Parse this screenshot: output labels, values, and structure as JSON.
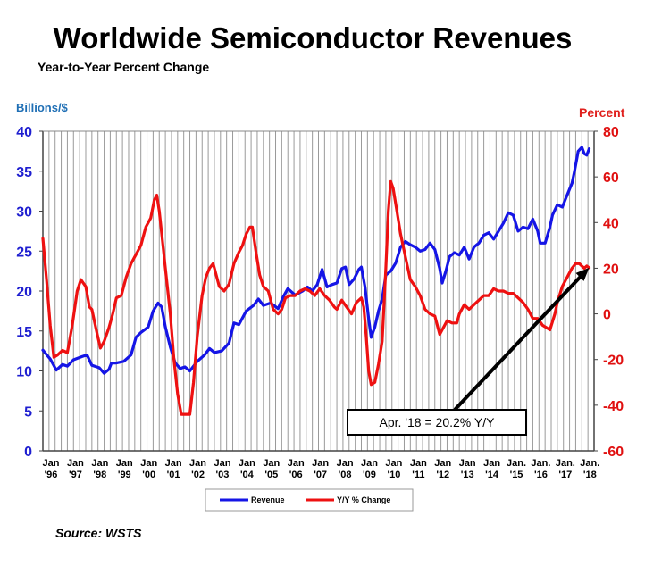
{
  "title": "Worldwide Semiconductor Revenues",
  "subtitle": "Year-to-Year Percent Change",
  "source": "Source: WSTS",
  "colors": {
    "revenue": "#1515e6",
    "yoy": "#ee1111",
    "left_axis": "#1f1fd0",
    "right_axis": "#e01010",
    "grid": "#9a9a9a"
  },
  "chart_data": {
    "type": "line",
    "ylabel_left": "Billions/$",
    "ylabel_right": "Percent",
    "ylim_left": [
      0,
      40
    ],
    "ylim_right": [
      -60,
      80
    ],
    "yticks_left": [
      "0",
      "5",
      "10",
      "15",
      "20",
      "25",
      "30",
      "35",
      "40"
    ],
    "yticks_right": [
      "-60",
      "-40",
      "-20",
      "0",
      "20",
      "40",
      "60",
      "80"
    ],
    "xlim": [
      1996.0,
      2018.5
    ],
    "xticks": [
      {
        "x": 1996,
        "top": "Jan",
        "bottom": "'96"
      },
      {
        "x": 1997,
        "top": "Jan",
        "bottom": "'97"
      },
      {
        "x": 1998,
        "top": "Jan",
        "bottom": "'98"
      },
      {
        "x": 1999,
        "top": "Jan",
        "bottom": "'99"
      },
      {
        "x": 2000,
        "top": "Jan",
        "bottom": "'00"
      },
      {
        "x": 2001,
        "top": "Jan",
        "bottom": "'01"
      },
      {
        "x": 2002,
        "top": "Jan",
        "bottom": "'02"
      },
      {
        "x": 2003,
        "top": "Jan",
        "bottom": "'03"
      },
      {
        "x": 2004,
        "top": "Jan",
        "bottom": "'04"
      },
      {
        "x": 2005,
        "top": "Jan",
        "bottom": "'05"
      },
      {
        "x": 2006,
        "top": "Jan",
        "bottom": "'06"
      },
      {
        "x": 2007,
        "top": "Jan",
        "bottom": "'07"
      },
      {
        "x": 2008,
        "top": "Jan",
        "bottom": "'08"
      },
      {
        "x": 2009,
        "top": "Jan",
        "bottom": "'09"
      },
      {
        "x": 2010,
        "top": "Jan",
        "bottom": "'10"
      },
      {
        "x": 2011,
        "top": "Jan",
        "bottom": "'11"
      },
      {
        "x": 2012,
        "top": "Jan",
        "bottom": "'12"
      },
      {
        "x": 2013,
        "top": "Jan",
        "bottom": "'13"
      },
      {
        "x": 2014,
        "top": "Jan",
        "bottom": "'14"
      },
      {
        "x": 2015,
        "top": "Jan.",
        "bottom": "'15"
      },
      {
        "x": 2016,
        "top": "Jan.",
        "bottom": "'16"
      },
      {
        "x": 2017,
        "top": "Jan.",
        "bottom": "'17"
      },
      {
        "x": 2018,
        "top": "Jan.",
        "bottom": "'18"
      }
    ],
    "grid": "vertical",
    "legend_position": "bottom-center",
    "series": [
      {
        "name": "Revenue",
        "axis": "left",
        "points": [
          [
            1996.0,
            12.6
          ],
          [
            1996.3,
            11.5
          ],
          [
            1996.55,
            10.1
          ],
          [
            1996.8,
            10.8
          ],
          [
            1997.0,
            10.6
          ],
          [
            1997.25,
            11.4
          ],
          [
            1997.6,
            11.8
          ],
          [
            1997.8,
            12.0
          ],
          [
            1998.0,
            10.7
          ],
          [
            1998.3,
            10.4
          ],
          [
            1998.5,
            9.7
          ],
          [
            1998.7,
            10.2
          ],
          [
            1998.8,
            11.0
          ],
          [
            1999.0,
            11.0
          ],
          [
            1999.3,
            11.2
          ],
          [
            1999.6,
            12.0
          ],
          [
            1999.8,
            14.2
          ],
          [
            2000.0,
            14.8
          ],
          [
            2000.3,
            15.5
          ],
          [
            2000.5,
            17.5
          ],
          [
            2000.7,
            18.5
          ],
          [
            2000.85,
            18.0
          ],
          [
            2001.0,
            15.5
          ],
          [
            2001.2,
            13.0
          ],
          [
            2001.4,
            11.0
          ],
          [
            2001.6,
            10.3
          ],
          [
            2001.8,
            10.5
          ],
          [
            2002.0,
            10.0
          ],
          [
            2002.3,
            11.2
          ],
          [
            2002.6,
            12.0
          ],
          [
            2002.8,
            12.8
          ],
          [
            2003.0,
            12.3
          ],
          [
            2003.3,
            12.5
          ],
          [
            2003.6,
            13.5
          ],
          [
            2003.8,
            16.0
          ],
          [
            2004.0,
            15.8
          ],
          [
            2004.3,
            17.5
          ],
          [
            2004.6,
            18.2
          ],
          [
            2004.8,
            19.0
          ],
          [
            2005.0,
            18.2
          ],
          [
            2005.3,
            18.5
          ],
          [
            2005.6,
            17.8
          ],
          [
            2005.8,
            19.2
          ],
          [
            2006.0,
            20.3
          ],
          [
            2006.3,
            19.5
          ],
          [
            2006.6,
            20.0
          ],
          [
            2006.8,
            20.5
          ],
          [
            2007.0,
            20.0
          ],
          [
            2007.2,
            20.8
          ],
          [
            2007.4,
            22.7
          ],
          [
            2007.6,
            20.5
          ],
          [
            2007.8,
            20.8
          ],
          [
            2008.0,
            21.0
          ],
          [
            2008.2,
            22.8
          ],
          [
            2008.35,
            23.0
          ],
          [
            2008.5,
            20.8
          ],
          [
            2008.7,
            21.5
          ],
          [
            2008.9,
            22.7
          ],
          [
            2009.0,
            23.0
          ],
          [
            2009.15,
            20.5
          ],
          [
            2009.3,
            16.5
          ],
          [
            2009.4,
            14.2
          ],
          [
            2009.55,
            15.5
          ],
          [
            2009.7,
            17.5
          ],
          [
            2009.85,
            19.0
          ],
          [
            2010.0,
            22.0
          ],
          [
            2010.2,
            22.5
          ],
          [
            2010.4,
            23.5
          ],
          [
            2010.6,
            25.5
          ],
          [
            2010.8,
            26.2
          ],
          [
            2011.0,
            25.8
          ],
          [
            2011.2,
            25.5
          ],
          [
            2011.4,
            25.0
          ],
          [
            2011.6,
            25.2
          ],
          [
            2011.8,
            26.0
          ],
          [
            2012.0,
            25.2
          ],
          [
            2012.2,
            22.8
          ],
          [
            2012.3,
            21.0
          ],
          [
            2012.45,
            22.5
          ],
          [
            2012.6,
            24.3
          ],
          [
            2012.8,
            24.8
          ],
          [
            2013.0,
            24.5
          ],
          [
            2013.2,
            25.5
          ],
          [
            2013.4,
            24.0
          ],
          [
            2013.6,
            25.5
          ],
          [
            2013.8,
            26.0
          ],
          [
            2014.0,
            27.0
          ],
          [
            2014.2,
            27.3
          ],
          [
            2014.4,
            26.5
          ],
          [
            2014.6,
            27.5
          ],
          [
            2014.8,
            28.5
          ],
          [
            2015.0,
            29.8
          ],
          [
            2015.2,
            29.5
          ],
          [
            2015.4,
            27.5
          ],
          [
            2015.6,
            28.0
          ],
          [
            2015.8,
            27.8
          ],
          [
            2016.0,
            29.0
          ],
          [
            2016.2,
            27.5
          ],
          [
            2016.3,
            26.0
          ],
          [
            2016.5,
            26.0
          ],
          [
            2016.7,
            28.0
          ],
          [
            2016.8,
            29.5
          ],
          [
            2017.0,
            30.8
          ],
          [
            2017.2,
            30.5
          ],
          [
            2017.4,
            32.0
          ],
          [
            2017.6,
            33.5
          ],
          [
            2017.7,
            35.0
          ],
          [
            2017.85,
            37.5
          ],
          [
            2018.0,
            38.0
          ],
          [
            2018.1,
            37.2
          ],
          [
            2018.2,
            37.0
          ],
          [
            2018.3,
            37.8
          ]
        ]
      },
      {
        "name": "Y/Y % Change",
        "axis": "right",
        "points": [
          [
            1996.0,
            33
          ],
          [
            1996.15,
            15
          ],
          [
            1996.3,
            -5
          ],
          [
            1996.45,
            -19
          ],
          [
            1996.6,
            -18
          ],
          [
            1996.8,
            -16
          ],
          [
            1997.0,
            -17
          ],
          [
            1997.2,
            -5
          ],
          [
            1997.4,
            10
          ],
          [
            1997.55,
            15
          ],
          [
            1997.75,
            12
          ],
          [
            1997.9,
            3
          ],
          [
            1998.0,
            2
          ],
          [
            1998.2,
            -8
          ],
          [
            1998.35,
            -15
          ],
          [
            1998.5,
            -12
          ],
          [
            1998.7,
            -6
          ],
          [
            1998.85,
            0
          ],
          [
            1999.0,
            7
          ],
          [
            1999.2,
            8
          ],
          [
            1999.4,
            16
          ],
          [
            1999.6,
            22
          ],
          [
            1999.8,
            26
          ],
          [
            2000.0,
            30
          ],
          [
            2000.2,
            38
          ],
          [
            2000.4,
            42
          ],
          [
            2000.55,
            50
          ],
          [
            2000.65,
            52
          ],
          [
            2000.75,
            45
          ],
          [
            2000.9,
            30
          ],
          [
            2001.0,
            20
          ],
          [
            2001.2,
            0
          ],
          [
            2001.35,
            -20
          ],
          [
            2001.5,
            -35
          ],
          [
            2001.65,
            -44
          ],
          [
            2001.8,
            -44
          ],
          [
            2002.0,
            -44
          ],
          [
            2002.15,
            -30
          ],
          [
            2002.3,
            -10
          ],
          [
            2002.5,
            8
          ],
          [
            2002.65,
            16
          ],
          [
            2002.8,
            20
          ],
          [
            2002.95,
            22
          ],
          [
            2003.0,
            20
          ],
          [
            2003.2,
            12
          ],
          [
            2003.4,
            10
          ],
          [
            2003.6,
            13
          ],
          [
            2003.8,
            22
          ],
          [
            2004.0,
            27
          ],
          [
            2004.15,
            30
          ],
          [
            2004.3,
            35
          ],
          [
            2004.45,
            38
          ],
          [
            2004.55,
            38
          ],
          [
            2004.7,
            27
          ],
          [
            2004.85,
            17
          ],
          [
            2005.0,
            12
          ],
          [
            2005.2,
            10
          ],
          [
            2005.4,
            2
          ],
          [
            2005.6,
            0
          ],
          [
            2005.75,
            2
          ],
          [
            2005.9,
            7
          ],
          [
            2006.1,
            8
          ],
          [
            2006.3,
            8
          ],
          [
            2006.5,
            10
          ],
          [
            2006.7,
            11
          ],
          [
            2006.9,
            10
          ],
          [
            2007.1,
            8
          ],
          [
            2007.3,
            11
          ],
          [
            2007.5,
            8
          ],
          [
            2007.7,
            6
          ],
          [
            2007.9,
            3
          ],
          [
            2008.0,
            2
          ],
          [
            2008.2,
            6
          ],
          [
            2008.4,
            3
          ],
          [
            2008.6,
            0
          ],
          [
            2008.8,
            5
          ],
          [
            2009.0,
            7
          ],
          [
            2009.1,
            3
          ],
          [
            2009.2,
            -10
          ],
          [
            2009.3,
            -25
          ],
          [
            2009.4,
            -31
          ],
          [
            2009.55,
            -30
          ],
          [
            2009.7,
            -22
          ],
          [
            2009.85,
            -12
          ],
          [
            2010.0,
            20
          ],
          [
            2010.1,
            45
          ],
          [
            2010.2,
            58
          ],
          [
            2010.3,
            55
          ],
          [
            2010.45,
            45
          ],
          [
            2010.6,
            35
          ],
          [
            2010.8,
            25
          ],
          [
            2011.0,
            15
          ],
          [
            2011.2,
            12
          ],
          [
            2011.4,
            8
          ],
          [
            2011.6,
            2
          ],
          [
            2011.8,
            0
          ],
          [
            2012.0,
            -1
          ],
          [
            2012.2,
            -9
          ],
          [
            2012.35,
            -6
          ],
          [
            2012.5,
            -3
          ],
          [
            2012.7,
            -4
          ],
          [
            2012.9,
            -4
          ],
          [
            2013.0,
            0
          ],
          [
            2013.2,
            4
          ],
          [
            2013.4,
            2
          ],
          [
            2013.6,
            4
          ],
          [
            2013.8,
            6
          ],
          [
            2014.0,
            8
          ],
          [
            2014.2,
            8
          ],
          [
            2014.4,
            11
          ],
          [
            2014.6,
            10
          ],
          [
            2014.8,
            10
          ],
          [
            2015.0,
            9
          ],
          [
            2015.2,
            9
          ],
          [
            2015.4,
            7
          ],
          [
            2015.6,
            5
          ],
          [
            2015.8,
            2
          ],
          [
            2016.0,
            -2
          ],
          [
            2016.2,
            -2
          ],
          [
            2016.4,
            -5
          ],
          [
            2016.55,
            -6
          ],
          [
            2016.7,
            -7
          ],
          [
            2016.9,
            0
          ],
          [
            2017.0,
            5
          ],
          [
            2017.2,
            12
          ],
          [
            2017.4,
            16
          ],
          [
            2017.6,
            20
          ],
          [
            2017.75,
            22
          ],
          [
            2017.9,
            22
          ],
          [
            2018.0,
            21
          ],
          [
            2018.1,
            20
          ],
          [
            2018.2,
            21
          ],
          [
            2018.3,
            20.2
          ]
        ]
      }
    ],
    "annotation": {
      "text": "Apr. '18 = 20.2% Y/Y",
      "x": 2018.3,
      "y": 20.2,
      "axis": "right"
    }
  }
}
